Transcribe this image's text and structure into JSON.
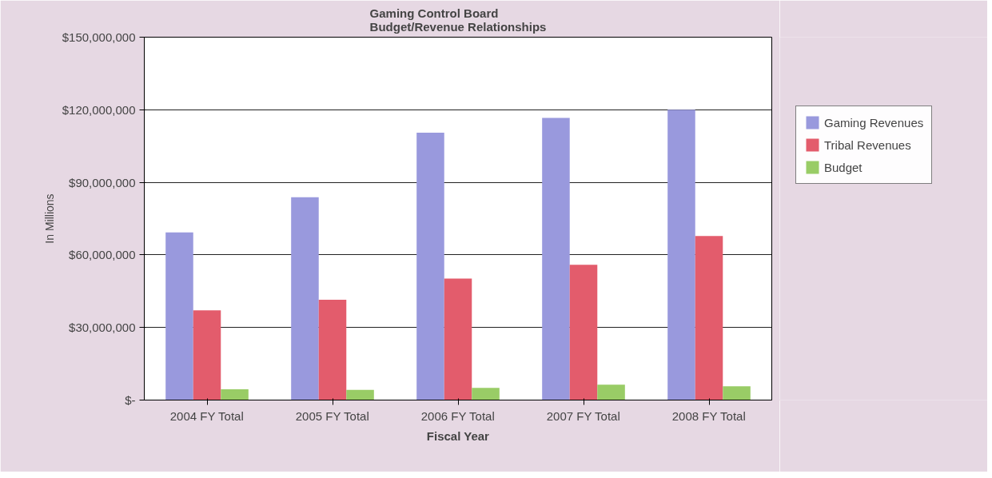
{
  "chart_data": {
    "type": "bar",
    "title": "Gaming Control Board\nBudget/Revenue Relationships",
    "xlabel": "Fiscal Year",
    "ylabel": "In Millions",
    "categories": [
      "2004 FY Total",
      "2005 FY Total",
      "2006 FY Total",
      "2007 FY Total",
      "2008 FY Total"
    ],
    "series": [
      {
        "name": "Gaming Revenues",
        "color": "#9999dd",
        "values": [
          69300000,
          83800000,
          110500000,
          116600000,
          120000000
        ]
      },
      {
        "name": "Tribal Revenues",
        "color": "#e35c6c",
        "values": [
          37100000,
          41500000,
          50200000,
          55900000,
          67800000
        ]
      },
      {
        "name": "Budget",
        "color": "#99cc66",
        "values": [
          4500000,
          4200000,
          5000000,
          6400000,
          5700000
        ]
      }
    ],
    "ylim": [
      0,
      150000000
    ],
    "yticks": [
      {
        "value": 0,
        "label": "$-"
      },
      {
        "value": 30000000,
        "label": "$30,000,000"
      },
      {
        "value": 60000000,
        "label": "$60,000,000"
      },
      {
        "value": 90000000,
        "label": "$90,000,000"
      },
      {
        "value": 120000000,
        "label": "$120,000,000"
      },
      {
        "value": 150000000,
        "label": "$150,000,000"
      }
    ],
    "grid": "y",
    "legend": "right"
  }
}
